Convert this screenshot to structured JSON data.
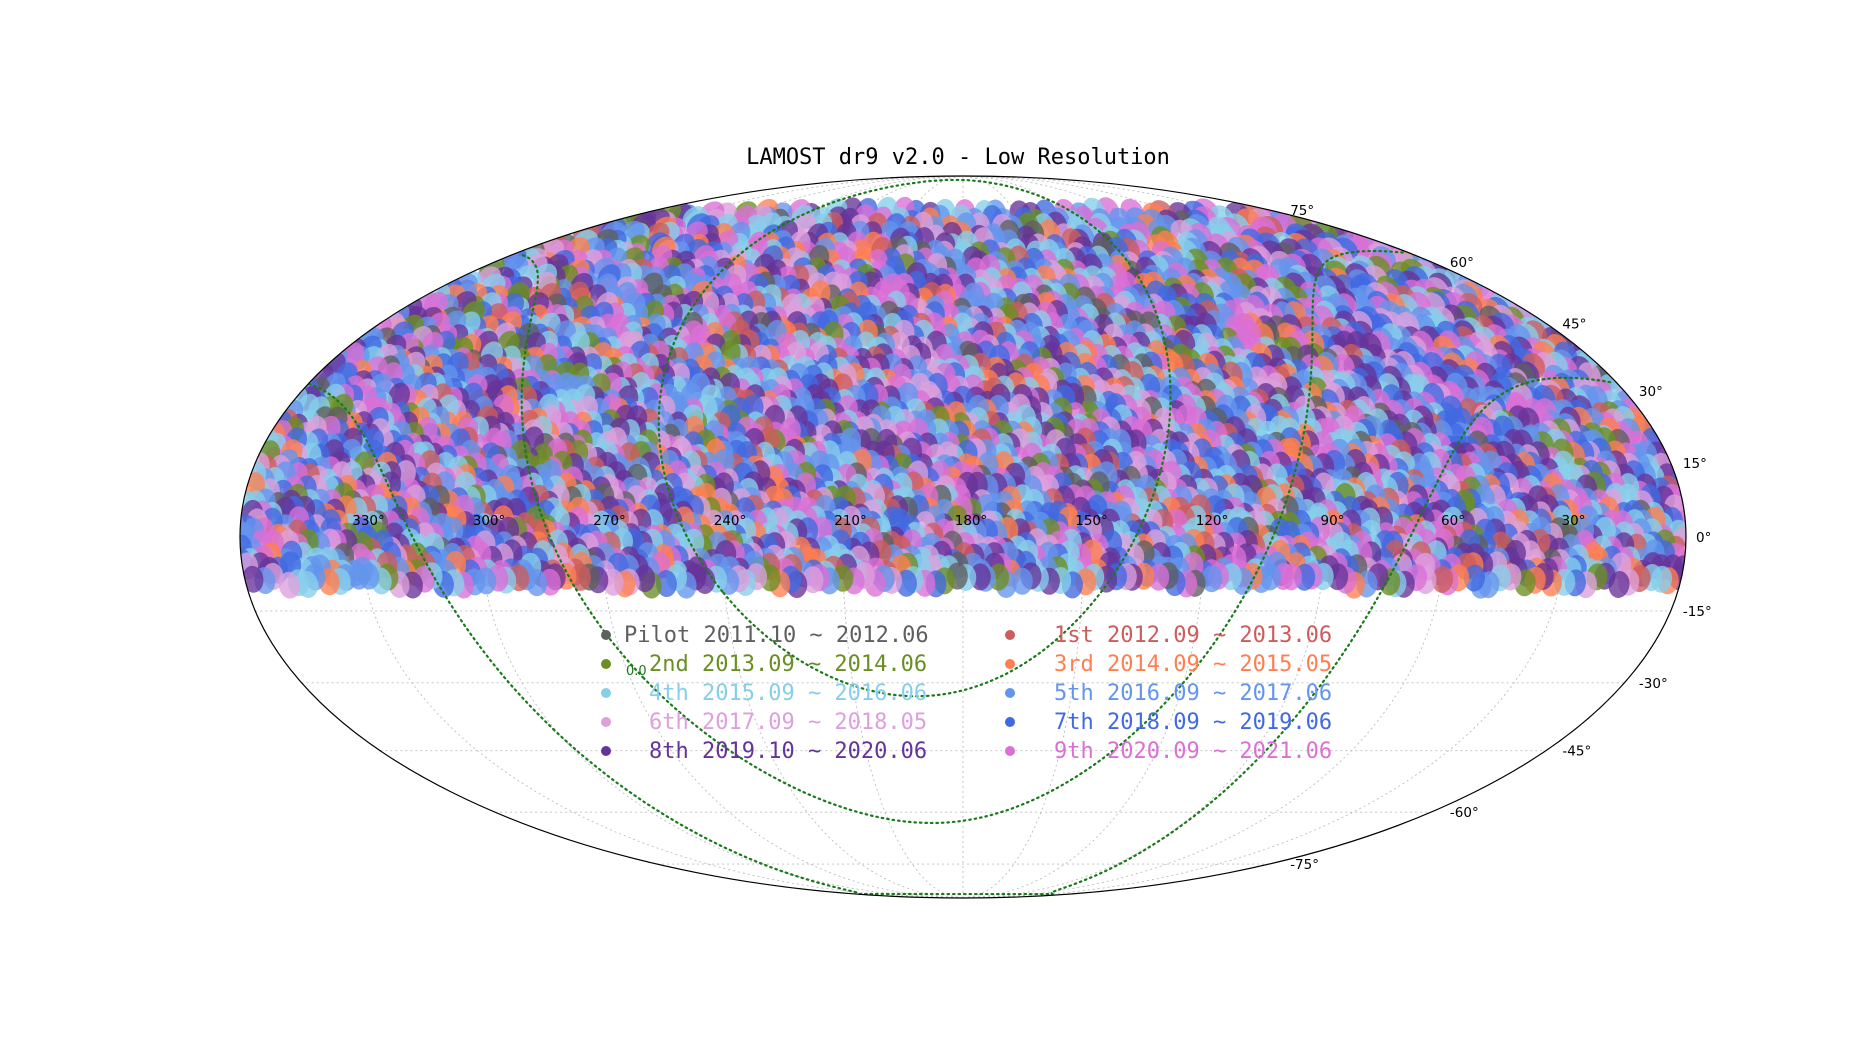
{
  "chart_data": {
    "type": "scatter",
    "projection": "mollweide",
    "title": "LAMOST dr9 v2.0 - Low Resolution",
    "grid": true,
    "legend_placement": "lower-center",
    "ra_ticks": [
      "330°",
      "300°",
      "270°",
      "240°",
      "210°",
      "180°",
      "150°",
      "120°",
      "90°",
      "60°",
      "30°"
    ],
    "ra_values": [
      330,
      300,
      270,
      240,
      210,
      180,
      150,
      120,
      90,
      60,
      30
    ],
    "dec_ticks": [
      "75°",
      "60°",
      "45°",
      "30°",
      "15°",
      "0°",
      "-15°",
      "-30°",
      "-45°",
      "-60°",
      "-75°"
    ],
    "dec_values": [
      75,
      60,
      45,
      30,
      15,
      0,
      -15,
      -30,
      -45,
      -60,
      -75
    ],
    "galactic_label": "0.0",
    "dec_range_covered": [
      -10,
      90
    ],
    "series": [
      {
        "name": "Pilot 2011.10 ~ 2012.06",
        "color": "#5f5f5f"
      },
      {
        "name": "1st 2012.09 ~ 2013.06",
        "color": "#cd5c5c"
      },
      {
        "name": "2nd 2013.09 ~ 2014.06",
        "color": "#6b8e23"
      },
      {
        "name": "3rd 2014.09 ~ 2015.05",
        "color": "#ff7f50"
      },
      {
        "name": "4th 2015.09 ~ 2016.06",
        "color": "#87ceeb"
      },
      {
        "name": "5th 2016.09 ~ 2017.06",
        "color": "#6495ed"
      },
      {
        "name": "6th 2017.09 ~ 2018.05",
        "color": "#dda0dd"
      },
      {
        "name": "7th 2018.09 ~ 2019.06",
        "color": "#4169e1"
      },
      {
        "name": "8th 2019.10 ~ 2020.06",
        "color": "#663399"
      },
      {
        "name": "9th 2020.09 ~ 2021.06",
        "color": "#da70d6"
      }
    ]
  }
}
